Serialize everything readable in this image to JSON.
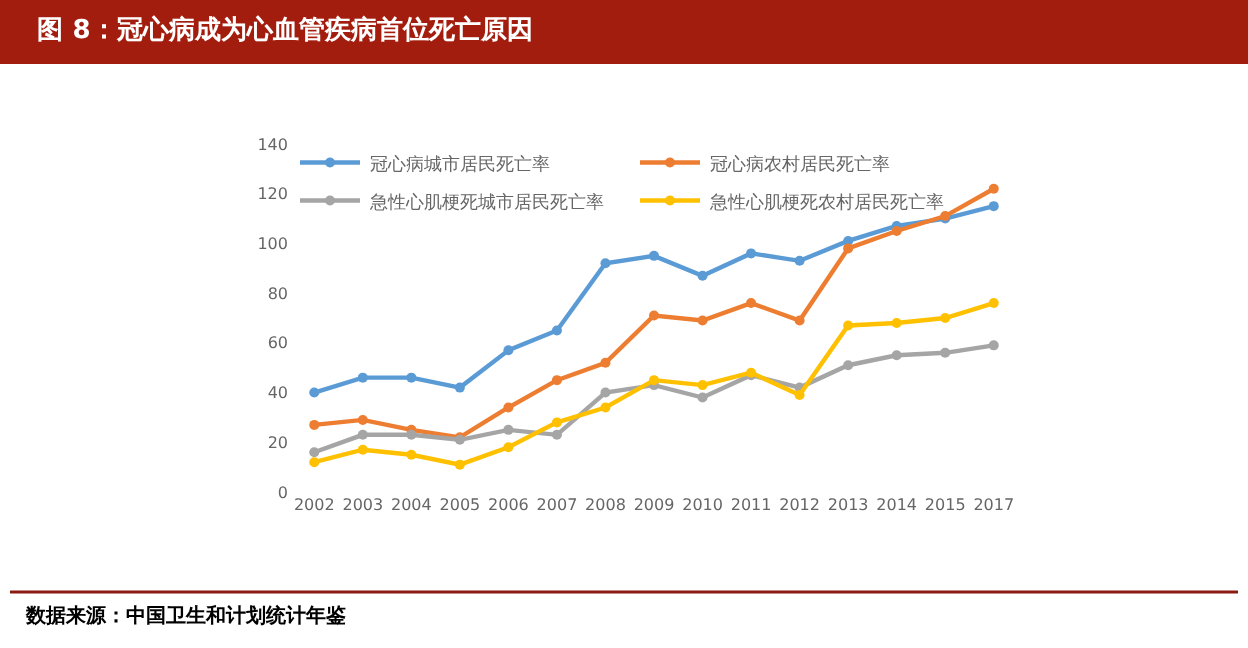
{
  "chart_data": {
    "type": "line",
    "title": "图 8：冠心病成为心血管疾病首位死亡原因",
    "categories": [
      "2002",
      "2003",
      "2004",
      "2005",
      "2006",
      "2007",
      "2008",
      "2009",
      "2010",
      "2011",
      "2012",
      "2013",
      "2014",
      "2015",
      "2017"
    ],
    "series": [
      {
        "name": "冠心病城市居民死亡率",
        "color": "#5b9bd5",
        "values": [
          40,
          46,
          46,
          42,
          57,
          65,
          92,
          95,
          87,
          96,
          93,
          101,
          107,
          110,
          115
        ]
      },
      {
        "name": "冠心病农村居民死亡率",
        "color": "#ed7d31",
        "values": [
          27,
          29,
          25,
          22,
          34,
          45,
          52,
          71,
          69,
          76,
          69,
          98,
          105,
          111,
          122
        ]
      },
      {
        "name": "急性心肌梗死城市居民死亡率",
        "color": "#a5a5a5",
        "values": [
          16,
          23,
          23,
          21,
          25,
          23,
          40,
          43,
          38,
          47,
          42,
          51,
          55,
          56,
          59
        ]
      },
      {
        "name": "急性心肌梗死农村居民死亡率",
        "color": "#ffc000",
        "values": [
          12,
          17,
          15,
          11,
          18,
          28,
          34,
          45,
          43,
          48,
          39,
          67,
          68,
          70,
          76
        ]
      }
    ],
    "ylim": [
      0,
      140
    ],
    "yticks": [
      0,
      20,
      40,
      60,
      80,
      100,
      120,
      140
    ],
    "grid": false,
    "legend": "top",
    "marker": "circle",
    "line_style": "solid",
    "annotations": [
      "数据来源：中国卫生和计划统计年鉴"
    ]
  }
}
